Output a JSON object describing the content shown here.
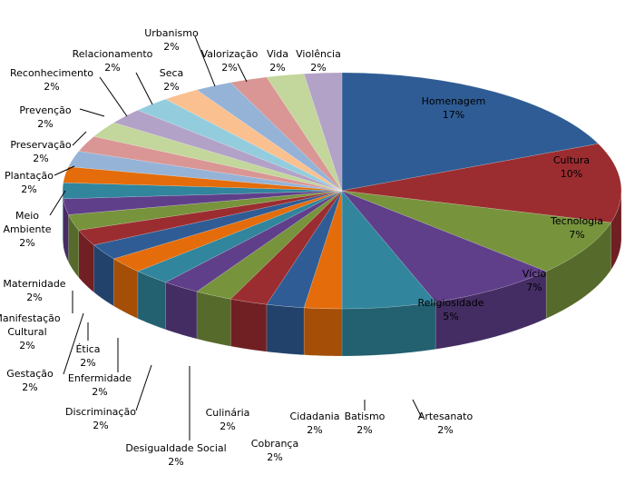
{
  "chart_data": {
    "type": "pie",
    "style": "3d-exploded-none",
    "start": "12 o'clock, clockwise",
    "slices": [
      {
        "label": "Homenagem",
        "value": 17,
        "display": "17%"
      },
      {
        "label": "Cultura",
        "value": 10,
        "display": "10%"
      },
      {
        "label": "Tecnologia",
        "value": 7,
        "display": "7%"
      },
      {
        "label": "Vício",
        "value": 7,
        "display": "7%"
      },
      {
        "label": "Religiosidade",
        "value": 5,
        "display": "5%"
      },
      {
        "label": "Artesanato",
        "value": 2,
        "display": "2%"
      },
      {
        "label": "Batismo",
        "value": 2,
        "display": "2%"
      },
      {
        "label": "Cidadania",
        "value": 2,
        "display": "2%"
      },
      {
        "label": "Cobrança",
        "value": 2,
        "display": "2%"
      },
      {
        "label": "Culinária",
        "value": 2,
        "display": "2%"
      },
      {
        "label": "Desigualdade Social",
        "value": 2,
        "display": "2%"
      },
      {
        "label": "Discriminação",
        "value": 2,
        "display": "2%"
      },
      {
        "label": "Enfermidade",
        "value": 2,
        "display": "2%"
      },
      {
        "label": "Ética",
        "value": 2,
        "display": "2%"
      },
      {
        "label": "Gestação",
        "value": 2,
        "display": "2%"
      },
      {
        "label": "Manifestação Cultural",
        "value": 2,
        "display": "2%"
      },
      {
        "label": "Maternidade",
        "value": 2,
        "display": "2%"
      },
      {
        "label": "Meio Ambiente",
        "value": 2,
        "display": "2%"
      },
      {
        "label": "Plantação",
        "value": 2,
        "display": "2%"
      },
      {
        "label": "Preservação",
        "value": 2,
        "display": "2%"
      },
      {
        "label": "Prevenção",
        "value": 2,
        "display": "2%"
      },
      {
        "label": "Reconhecimento",
        "value": 2,
        "display": "2%"
      },
      {
        "label": "Relacionamento",
        "value": 2,
        "display": "2%"
      },
      {
        "label": "Seca",
        "value": 2,
        "display": "2%"
      },
      {
        "label": "Urbanismo",
        "value": 2,
        "display": "2%"
      },
      {
        "label": "Valorização",
        "value": 2,
        "display": "2%"
      },
      {
        "label": "Vida",
        "value": 2,
        "display": "2%"
      },
      {
        "label": "Violência",
        "value": 2,
        "display": "2%"
      }
    ],
    "colors": [
      "#2F5C94",
      "#9B2D30",
      "#77933C",
      "#5F3F8A",
      "#31859C",
      "#E46C0A"
    ],
    "light_colors": [
      "#95B3D7",
      "#D99694",
      "#C3D69B",
      "#B3A2C7",
      "#93CDDD",
      "#FAC090"
    ],
    "legend": "none"
  }
}
